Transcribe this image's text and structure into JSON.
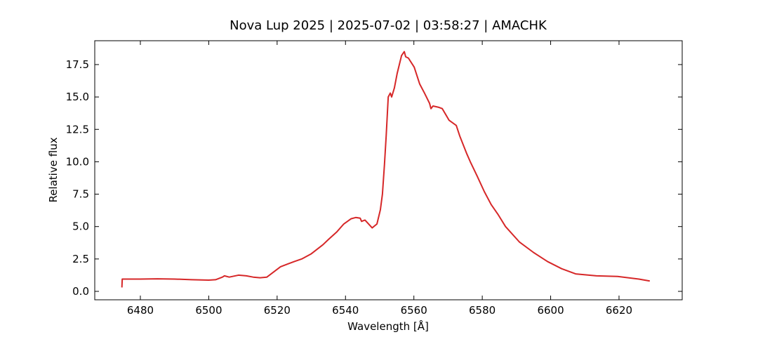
{
  "chart_data": {
    "type": "line",
    "title": "Nova Lup 2025 | 2025-07-02 | 03:58:27 | AMACHK",
    "x_label": "Wavelength [Å]",
    "y_label": "Relative flux",
    "x": [
      6474.6,
      6474.7,
      6480,
      6485,
      6490,
      6495,
      6500,
      6502,
      6504,
      6504.6,
      6506,
      6508.7,
      6511,
      6513,
      6515,
      6517,
      6519,
      6521,
      6523,
      6525,
      6527.2,
      6530,
      6533.4,
      6535,
      6537.5,
      6539.5,
      6541.6,
      6543,
      6544.3,
      6544.7,
      6545.7,
      6547.8,
      6549.2,
      6550.2,
      6550.8,
      6551.4,
      6551.9,
      6552.5,
      6553.1,
      6553.5,
      6554.3,
      6555.1,
      6556.4,
      6557.2,
      6557.6,
      6558.4,
      6560.1,
      6561.7,
      6563.1,
      6564.6,
      6565,
      6565.6,
      6567.3,
      6568.3,
      6570.3,
      6572.4,
      6573.4,
      6575.5,
      6576.5,
      6578.5,
      6580.6,
      6582.6,
      6584.7,
      6586.8,
      6590.9,
      6595,
      6599.1,
      6603.2,
      6607.3,
      6613.4,
      6619.6,
      6625.8,
      6629
    ],
    "series": [
      {
        "name": "Relative flux",
        "color": "#d62728",
        "values": [
          0.3,
          0.95,
          0.95,
          0.97,
          0.95,
          0.9,
          0.87,
          0.9,
          1.1,
          1.2,
          1.1,
          1.25,
          1.2,
          1.1,
          1.05,
          1.1,
          1.5,
          1.9,
          2.1,
          2.3,
          2.5,
          2.9,
          3.6,
          4.0,
          4.6,
          5.2,
          5.6,
          5.7,
          5.65,
          5.4,
          5.5,
          4.9,
          5.2,
          6.3,
          7.5,
          9.8,
          12.0,
          15.0,
          15.3,
          15.0,
          15.7,
          16.8,
          18.2,
          18.5,
          18.1,
          18.0,
          17.3,
          16.0,
          15.3,
          14.5,
          14.1,
          14.3,
          14.2,
          14.1,
          13.2,
          12.8,
          12.0,
          10.6,
          10.0,
          8.9,
          7.7,
          6.7,
          5.9,
          5.0,
          3.8,
          3.0,
          2.3,
          1.75,
          1.35,
          1.2,
          1.15,
          0.95,
          0.8
        ]
      }
    ],
    "xlim": [
      6466.66,
      6638.48
    ],
    "ylim": [
      -0.65,
      19.34
    ],
    "xticks": [
      6480,
      6500,
      6520,
      6540,
      6560,
      6580,
      6600,
      6620
    ],
    "yticks": [
      {
        "value": 0,
        "label": "0.0"
      },
      2.5,
      {
        "value": 5,
        "label": "5.0"
      },
      7.5,
      {
        "value": 10,
        "label": "10.0"
      },
      12.5,
      {
        "value": 15,
        "label": "15.0"
      },
      17.5
    ],
    "grid": false
  }
}
